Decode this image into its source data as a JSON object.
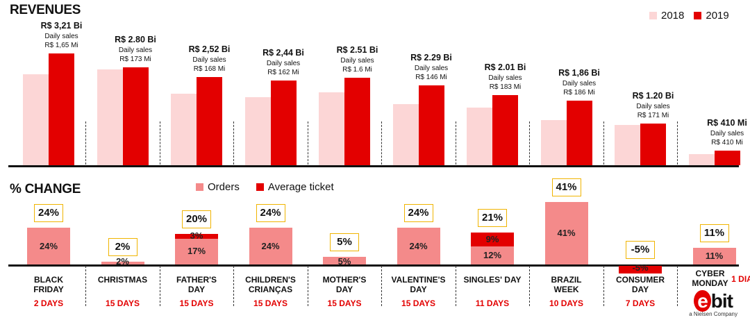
{
  "titles": {
    "revenues": "REVENUES",
    "change": "% CHANGE"
  },
  "legend_top": [
    {
      "label": "2018",
      "color": "#fcd6d6"
    },
    {
      "label": "2019",
      "color": "#e30000"
    }
  ],
  "legend_change": [
    {
      "label": "Orders",
      "color": "#f48a8a"
    },
    {
      "label": "Average ticket",
      "color": "#e30000"
    }
  ],
  "colors": {
    "y2018": "#fcd6d6",
    "y2019": "#e30000",
    "orders": "#f48a8a",
    "ticket": "#e30000",
    "box_border": "#f0b400"
  },
  "chart_data": [
    {
      "type": "bar",
      "title": "REVENUES",
      "unit": "R$ Bi",
      "categories": [
        "BLACK FRIDAY",
        "CHRISTMAS",
        "FATHER'S DAY",
        "CHILDREN'S CRIANÇAS",
        "MOTHER'S DAY",
        "VALENTINE'S DAY",
        "SINGLES' DAY",
        "BRAZIL WEEK",
        "CONSUMER DAY",
        "CYBER MONDAY"
      ],
      "series": [
        {
          "name": "2018",
          "values": [
            2.6,
            2.75,
            2.05,
            1.95,
            2.1,
            1.75,
            1.65,
            1.3,
            1.15,
            0.32
          ]
        },
        {
          "name": "2019",
          "values": [
            3.21,
            2.8,
            2.52,
            2.44,
            2.51,
            2.29,
            2.01,
            1.86,
            1.2,
            0.41
          ]
        }
      ],
      "ylim": [
        0,
        3.5
      ],
      "data_labels": [
        {
          "value": "R$ 3,21 Bi",
          "sub1": "Daily sales",
          "sub2": "R$ 1,65 Mi"
        },
        {
          "value": "R$ 2.80 Bi",
          "sub1": "Daily sales",
          "sub2": "R$ 173 Mi"
        },
        {
          "value": "R$ 2,52 Bi",
          "sub1": "Daily sales",
          "sub2": "R$ 168 Mi"
        },
        {
          "value": "R$ 2,44 Bi",
          "sub1": "Daily sales",
          "sub2": "R$ 162 Mi"
        },
        {
          "value": "R$ 2.51 Bi",
          "sub1": "Daily sales",
          "sub2": "R$ 1.6 Mi"
        },
        {
          "value": "R$ 2.29 Bi",
          "sub1": "Daily sales",
          "sub2": "R$ 146 Mi"
        },
        {
          "value": "R$ 2.01 Bi",
          "sub1": "Daily sales",
          "sub2": "R$ 183 Mi"
        },
        {
          "value": "R$ 1,86 Bi",
          "sub1": "Daily sales",
          "sub2": "R$ 186 Mi"
        },
        {
          "value": "R$ 1.20 Bi",
          "sub1": "Daily sales",
          "sub2": "R$ 171 Mi"
        },
        {
          "value": "R$ 410 Mi",
          "sub1": "Daily sales",
          "sub2": "R$ 410 Mi"
        }
      ]
    },
    {
      "type": "bar",
      "title": "% CHANGE",
      "stacked": true,
      "categories": [
        "BLACK FRIDAY",
        "CHRISTMAS",
        "FATHER'S DAY",
        "CHILDREN'S CRIANÇAS",
        "MOTHER'S DAY",
        "VALENTINE'S DAY",
        "SINGLES' DAY",
        "BRAZIL WEEK",
        "CONSUMER DAY",
        "CYBER MONDAY"
      ],
      "series": [
        {
          "name": "Orders",
          "values": [
            24,
            2,
            17,
            24,
            5,
            24,
            12,
            41,
            -5,
            11
          ],
          "labels": [
            "24%",
            "2%",
            "17%",
            "24%",
            "5%",
            "24%",
            "12%",
            "41%",
            "-5%",
            "11%"
          ]
        },
        {
          "name": "Average ticket",
          "values": [
            0,
            0,
            3,
            0,
            0,
            0,
            9,
            0,
            0,
            0
          ],
          "labels": [
            "",
            "",
            "3%",
            "",
            "",
            "",
            "9%",
            "",
            "",
            ""
          ]
        }
      ],
      "totals": [
        "24%",
        "2%",
        "20%",
        "24%",
        "5%",
        "24%",
        "21%",
        "41%",
        "-5%",
        "11%"
      ]
    }
  ],
  "events": [
    {
      "line1": "BLACK",
      "line2": "FRIDAY",
      "days": "2 DAYS"
    },
    {
      "line1": "CHRISTMAS",
      "line2": "",
      "days": "15 DAYS"
    },
    {
      "line1": "FATHER'S",
      "line2": "DAY",
      "days": "15 DAYS"
    },
    {
      "line1": "CHILDREN'S",
      "line2": "CRIANÇAS",
      "days": "15 DAYS"
    },
    {
      "line1": "MOTHER'S",
      "line2": "DAY",
      "days": "15 DAYS"
    },
    {
      "line1": "VALENTINE'S",
      "line2": "DAY",
      "days": "15 DAYS"
    },
    {
      "line1": "SINGLES' DAY",
      "line2": "",
      "days": "11 DAYS"
    },
    {
      "line1": "BRAZIL",
      "line2": "WEEK",
      "days": "10 DAYS"
    },
    {
      "line1": "CONSUMER",
      "line2": "DAY",
      "days": "7 DAYS"
    },
    {
      "line1": "CYBER",
      "line2": "MONDAY",
      "days": "1 DIA"
    }
  ],
  "logo": {
    "text": "ebit",
    "sub": "a Nielsen Company"
  }
}
